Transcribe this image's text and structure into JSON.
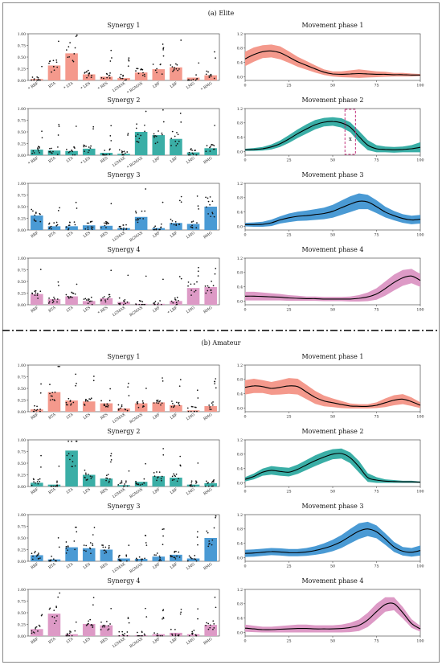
{
  "sections": [
    {
      "label": "(a) Elite"
    },
    {
      "label": "(b) Amateur"
    }
  ],
  "colors": {
    "synergy": [
      "#f4998c",
      "#3aaea6",
      "#4a9ad4",
      "#dd9ac6"
    ],
    "mean_line": "#000000",
    "annotation": "#c2307a"
  },
  "annotation": {
    "label": "x"
  },
  "chart_data": [
    {
      "type": "bar",
      "section": 0,
      "row": 0,
      "title": "Synergy 1",
      "categories": [
        "RBF",
        "RTA",
        "LTA",
        "LES",
        "RES",
        "LGMAX",
        "RGMAX",
        "LRF",
        "LBF",
        "LMG",
        "RMG"
      ],
      "starred": [
        true,
        false,
        true,
        true,
        true,
        false,
        true,
        false,
        false,
        false,
        true
      ],
      "values": [
        0.03,
        0.32,
        0.58,
        0.13,
        0.08,
        0.05,
        0.17,
        0.24,
        0.28,
        0.06,
        0.11
      ],
      "ylim": [
        0,
        1
      ],
      "yticks": [
        0,
        0.25,
        0.5,
        0.75,
        1
      ]
    },
    {
      "type": "area",
      "section": 0,
      "row": 0,
      "title": "Movement phase 1",
      "x": [
        0,
        5,
        10,
        15,
        20,
        25,
        30,
        35,
        40,
        45,
        50,
        55,
        60,
        65,
        70,
        75,
        80,
        85,
        90,
        95,
        100
      ],
      "mean": [
        0.5,
        0.62,
        0.7,
        0.72,
        0.67,
        0.55,
        0.42,
        0.32,
        0.22,
        0.13,
        0.08,
        0.07,
        0.08,
        0.09,
        0.08,
        0.07,
        0.07,
        0.06,
        0.06,
        0.05,
        0.05
      ],
      "band": [
        0.2,
        0.2,
        0.18,
        0.18,
        0.18,
        0.16,
        0.14,
        0.12,
        0.1,
        0.08,
        0.07,
        0.08,
        0.1,
        0.12,
        0.1,
        0.08,
        0.07,
        0.05,
        0.05,
        0.04,
        0.03
      ],
      "xlim": [
        0,
        100
      ],
      "xticks": [
        0,
        25,
        50,
        75,
        100
      ],
      "ylim": [
        -0.1,
        1.2
      ],
      "yticks": [
        0,
        0.4,
        0.8,
        1.2
      ]
    },
    {
      "type": "bar",
      "section": 0,
      "row": 1,
      "title": "Synergy 2",
      "categories": [
        "RBF",
        "RTA",
        "LTA",
        "LES",
        "RES",
        "LGMAX",
        "RGMAX",
        "LRF",
        "LBF",
        "LMG",
        "RMG"
      ],
      "starred": [
        true,
        false,
        false,
        true,
        false,
        false,
        true,
        false,
        false,
        false,
        false
      ],
      "values": [
        0.12,
        0.1,
        0.09,
        0.14,
        0.05,
        0.03,
        0.5,
        0.43,
        0.35,
        0.06,
        0.15
      ],
      "ylim": [
        0,
        1
      ],
      "yticks": [
        0,
        0.25,
        0.5,
        0.75,
        1
      ]
    },
    {
      "type": "area",
      "section": 0,
      "row": 1,
      "title": "Movement phase 2",
      "x": [
        0,
        5,
        10,
        15,
        20,
        25,
        30,
        35,
        40,
        45,
        50,
        55,
        60,
        65,
        70,
        75,
        80,
        85,
        90,
        95,
        100
      ],
      "mean": [
        0.05,
        0.06,
        0.08,
        0.13,
        0.22,
        0.35,
        0.5,
        0.63,
        0.75,
        0.82,
        0.84,
        0.8,
        0.68,
        0.42,
        0.18,
        0.08,
        0.06,
        0.05,
        0.06,
        0.08,
        0.12
      ],
      "band": [
        0.03,
        0.04,
        0.05,
        0.07,
        0.09,
        0.11,
        0.12,
        0.13,
        0.13,
        0.12,
        0.12,
        0.13,
        0.14,
        0.16,
        0.14,
        0.1,
        0.08,
        0.08,
        0.08,
        0.1,
        0.14
      ],
      "xlim": [
        0,
        100
      ],
      "xticks": [
        0,
        25,
        50,
        75,
        100
      ],
      "ylim": [
        -0.1,
        1.2
      ],
      "yticks": [
        0,
        0.4,
        0.8,
        1.2
      ],
      "highlight": [
        57,
        63
      ]
    },
    {
      "type": "bar",
      "section": 0,
      "row": 2,
      "title": "Synergy 3",
      "categories": [
        "RBF",
        "RTA",
        "LTA",
        "LES",
        "RES",
        "LGMAX",
        "RGMAX",
        "LRF",
        "LBF",
        "LMG",
        "RMG"
      ],
      "starred": [
        false,
        false,
        false,
        false,
        false,
        false,
        false,
        false,
        false,
        false,
        false
      ],
      "values": [
        0.31,
        0.08,
        0.08,
        0.1,
        0.09,
        0.04,
        0.28,
        0.04,
        0.15,
        0.13,
        0.5
      ],
      "ylim": [
        0,
        1
      ],
      "yticks": [
        0,
        0.25,
        0.5,
        0.75,
        1
      ]
    },
    {
      "type": "area",
      "section": 0,
      "row": 2,
      "title": "Movement phase 3",
      "x": [
        0,
        5,
        10,
        15,
        20,
        25,
        30,
        35,
        40,
        45,
        50,
        55,
        60,
        65,
        70,
        75,
        80,
        85,
        90,
        95,
        100
      ],
      "mean": [
        0.05,
        0.05,
        0.06,
        0.1,
        0.18,
        0.24,
        0.28,
        0.3,
        0.33,
        0.36,
        0.42,
        0.52,
        0.62,
        0.7,
        0.68,
        0.55,
        0.4,
        0.3,
        0.22,
        0.18,
        0.2
      ],
      "band": [
        0.05,
        0.06,
        0.07,
        0.09,
        0.1,
        0.12,
        0.13,
        0.14,
        0.15,
        0.16,
        0.18,
        0.2,
        0.22,
        0.22,
        0.2,
        0.18,
        0.15,
        0.13,
        0.12,
        0.12,
        0.12
      ],
      "xlim": [
        0,
        100
      ],
      "xticks": [
        0,
        25,
        50,
        75,
        100
      ],
      "ylim": [
        -0.1,
        1.2
      ],
      "yticks": [
        0,
        0.4,
        0.8,
        1.2
      ]
    },
    {
      "type": "bar",
      "section": 0,
      "row": 3,
      "title": "Synergy 4",
      "categories": [
        "RBF",
        "RTA",
        "LTA",
        "LES",
        "RES",
        "LGMAX",
        "RGMAX",
        "LRF",
        "LBF",
        "LMG",
        "RMG"
      ],
      "starred": [
        false,
        false,
        false,
        false,
        true,
        false,
        false,
        false,
        true,
        false,
        false
      ],
      "values": [
        0.23,
        0.12,
        0.18,
        0.08,
        0.14,
        0.06,
        0.02,
        0.02,
        0.08,
        0.36,
        0.38
      ],
      "ylim": [
        0,
        1
      ],
      "yticks": [
        0,
        0.25,
        0.5,
        0.75,
        1
      ]
    },
    {
      "type": "area",
      "section": 0,
      "row": 3,
      "title": "Movement phase 4",
      "x": [
        0,
        5,
        10,
        15,
        20,
        25,
        30,
        35,
        40,
        45,
        50,
        55,
        60,
        65,
        70,
        75,
        80,
        85,
        90,
        95,
        100
      ],
      "mean": [
        0.14,
        0.14,
        0.13,
        0.12,
        0.11,
        0.09,
        0.08,
        0.07,
        0.07,
        0.06,
        0.06,
        0.06,
        0.06,
        0.08,
        0.12,
        0.2,
        0.35,
        0.52,
        0.65,
        0.7,
        0.58
      ],
      "band": [
        0.12,
        0.12,
        0.11,
        0.1,
        0.09,
        0.08,
        0.07,
        0.06,
        0.06,
        0.06,
        0.06,
        0.06,
        0.07,
        0.09,
        0.12,
        0.16,
        0.2,
        0.22,
        0.22,
        0.2,
        0.18
      ],
      "xlim": [
        0,
        100
      ],
      "xticks": [
        0,
        25,
        50,
        75,
        100
      ],
      "ylim": [
        -0.1,
        1.2
      ],
      "yticks": [
        0,
        0.4,
        0.8,
        1.2
      ]
    },
    {
      "type": "bar",
      "section": 1,
      "row": 0,
      "title": "Synergy 1",
      "categories": [
        "RBF",
        "RTA",
        "LTA",
        "LES",
        "RES",
        "LGMAX",
        "RGMAX",
        "LRF",
        "LBF",
        "LMG",
        "RMG"
      ],
      "starred": [
        false,
        false,
        false,
        false,
        false,
        false,
        false,
        false,
        false,
        false,
        false
      ],
      "values": [
        0.05,
        0.42,
        0.24,
        0.22,
        0.18,
        0.07,
        0.18,
        0.2,
        0.14,
        0.03,
        0.12
      ],
      "ylim": [
        0,
        1
      ],
      "yticks": [
        0,
        0.25,
        0.5,
        0.75,
        1
      ]
    },
    {
      "type": "area",
      "section": 1,
      "row": 0,
      "title": "Movement phase 1",
      "x": [
        0,
        5,
        10,
        15,
        20,
        25,
        30,
        35,
        40,
        45,
        50,
        55,
        60,
        65,
        70,
        75,
        80,
        85,
        90,
        95,
        100
      ],
      "mean": [
        0.58,
        0.62,
        0.6,
        0.55,
        0.58,
        0.62,
        0.6,
        0.45,
        0.3,
        0.2,
        0.15,
        0.1,
        0.06,
        0.05,
        0.05,
        0.08,
        0.15,
        0.22,
        0.25,
        0.18,
        0.08
      ],
      "band": [
        0.2,
        0.2,
        0.18,
        0.18,
        0.2,
        0.22,
        0.22,
        0.2,
        0.18,
        0.15,
        0.12,
        0.1,
        0.07,
        0.06,
        0.06,
        0.08,
        0.12,
        0.14,
        0.14,
        0.12,
        0.08
      ],
      "xlim": [
        0,
        100
      ],
      "xticks": [
        0,
        25,
        50,
        75,
        100
      ],
      "ylim": [
        -0.1,
        1.2
      ],
      "yticks": [
        0,
        0.4,
        0.8,
        1.2
      ]
    },
    {
      "type": "bar",
      "section": 1,
      "row": 1,
      "title": "Synergy 2",
      "categories": [
        "RBF",
        "RTA",
        "LTA",
        "LES",
        "RES",
        "LGMAX",
        "RGMAX",
        "LRF",
        "LBF",
        "LMG",
        "RMG"
      ],
      "starred": [
        false,
        false,
        false,
        false,
        false,
        false,
        false,
        false,
        false,
        false,
        false
      ],
      "values": [
        0.08,
        0.04,
        0.77,
        0.25,
        0.17,
        0.03,
        0.1,
        0.22,
        0.19,
        0.04,
        0.07
      ],
      "ylim": [
        0,
        1
      ],
      "yticks": [
        0,
        0.25,
        0.5,
        0.75,
        1
      ]
    },
    {
      "type": "area",
      "section": 1,
      "row": 1,
      "title": "Movement phase 2",
      "x": [
        0,
        5,
        10,
        15,
        20,
        25,
        30,
        35,
        40,
        45,
        50,
        55,
        60,
        65,
        70,
        75,
        80,
        85,
        90,
        95,
        100
      ],
      "mean": [
        0.1,
        0.18,
        0.3,
        0.35,
        0.32,
        0.3,
        0.38,
        0.5,
        0.62,
        0.72,
        0.8,
        0.82,
        0.7,
        0.45,
        0.15,
        0.08,
        0.05,
        0.04,
        0.03,
        0.03,
        0.02
      ],
      "band": [
        0.06,
        0.08,
        0.1,
        0.12,
        0.12,
        0.12,
        0.13,
        0.14,
        0.15,
        0.15,
        0.14,
        0.14,
        0.15,
        0.16,
        0.12,
        0.08,
        0.05,
        0.04,
        0.03,
        0.03,
        0.02
      ],
      "xlim": [
        0,
        100
      ],
      "xticks": [
        0,
        25,
        50,
        75,
        100
      ],
      "ylim": [
        -0.1,
        1.2
      ],
      "yticks": [
        0,
        0.4,
        0.8,
        1.2
      ]
    },
    {
      "type": "bar",
      "section": 1,
      "row": 2,
      "title": "Synergy 3",
      "categories": [
        "RBF",
        "RTA",
        "LTA",
        "LES",
        "RES",
        "LGMAX",
        "RGMAX",
        "LRF",
        "LBF",
        "LMG",
        "RMG"
      ],
      "starred": [
        false,
        false,
        false,
        false,
        false,
        false,
        false,
        false,
        false,
        false,
        false
      ],
      "values": [
        0.13,
        0.04,
        0.3,
        0.28,
        0.25,
        0.06,
        0.05,
        0.1,
        0.14,
        0.06,
        0.5
      ],
      "ylim": [
        0,
        1
      ],
      "yticks": [
        0,
        0.25,
        0.5,
        0.75,
        1
      ]
    },
    {
      "type": "area",
      "section": 1,
      "row": 2,
      "title": "Movement phase 3",
      "x": [
        0,
        5,
        10,
        15,
        20,
        25,
        30,
        35,
        40,
        45,
        50,
        55,
        60,
        65,
        70,
        75,
        80,
        85,
        90,
        95,
        100
      ],
      "mean": [
        0.12,
        0.13,
        0.15,
        0.17,
        0.16,
        0.14,
        0.14,
        0.16,
        0.2,
        0.26,
        0.34,
        0.45,
        0.6,
        0.74,
        0.8,
        0.72,
        0.52,
        0.3,
        0.18,
        0.15,
        0.2
      ],
      "band": [
        0.1,
        0.1,
        0.1,
        0.1,
        0.1,
        0.1,
        0.1,
        0.11,
        0.12,
        0.14,
        0.16,
        0.18,
        0.2,
        0.22,
        0.2,
        0.18,
        0.16,
        0.14,
        0.12,
        0.12,
        0.14
      ],
      "xlim": [
        0,
        100
      ],
      "xticks": [
        0,
        25,
        50,
        75,
        100
      ],
      "ylim": [
        -0.1,
        1.2
      ],
      "yticks": [
        0,
        0.4,
        0.8,
        1.2
      ]
    },
    {
      "type": "bar",
      "section": 1,
      "row": 3,
      "title": "Synergy 4",
      "categories": [
        "RBF",
        "RTA",
        "LTA",
        "LES",
        "RES",
        "LGMAX",
        "RGMAX",
        "LRF",
        "LBF",
        "LMG",
        "RMG"
      ],
      "starred": [
        false,
        false,
        false,
        false,
        false,
        false,
        false,
        false,
        false,
        false,
        false
      ],
      "values": [
        0.15,
        0.48,
        0.04,
        0.26,
        0.23,
        0.02,
        0.02,
        0.04,
        0.07,
        0.04,
        0.24
      ],
      "ylim": [
        0,
        1
      ],
      "yticks": [
        0,
        0.25,
        0.5,
        0.75,
        1
      ]
    },
    {
      "type": "area",
      "section": 1,
      "row": 3,
      "title": "Movement phase 4",
      "x": [
        0,
        5,
        10,
        15,
        20,
        25,
        30,
        35,
        40,
        45,
        50,
        55,
        60,
        65,
        70,
        75,
        80,
        85,
        90,
        95,
        100
      ],
      "mean": [
        0.12,
        0.1,
        0.08,
        0.08,
        0.09,
        0.1,
        0.11,
        0.11,
        0.1,
        0.1,
        0.1,
        0.11,
        0.14,
        0.2,
        0.35,
        0.58,
        0.78,
        0.8,
        0.55,
        0.25,
        0.1
      ],
      "band": [
        0.1,
        0.09,
        0.08,
        0.08,
        0.09,
        0.1,
        0.11,
        0.11,
        0.1,
        0.1,
        0.1,
        0.11,
        0.13,
        0.16,
        0.2,
        0.22,
        0.2,
        0.18,
        0.16,
        0.12,
        0.08
      ],
      "xlim": [
        0,
        100
      ],
      "xticks": [
        0,
        25,
        50,
        75,
        100
      ],
      "ylim": [
        -0.1,
        1.2
      ],
      "yticks": [
        0,
        0.4,
        0.8,
        1.2
      ]
    }
  ]
}
